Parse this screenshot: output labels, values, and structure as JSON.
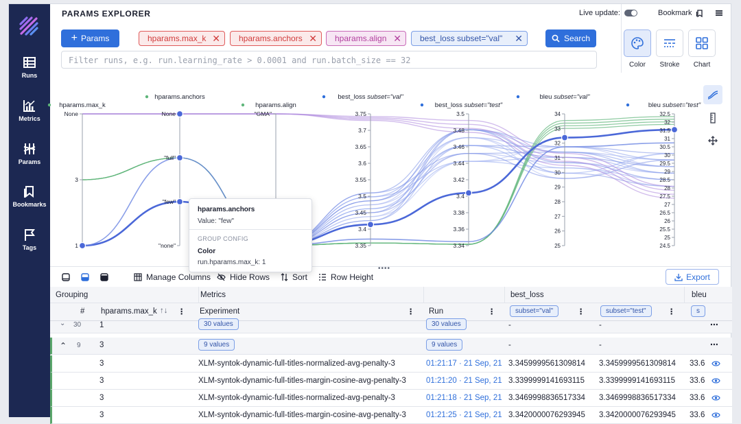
{
  "app": {
    "title": "PARAMS EXPLORER",
    "live_update_label": "Live update:",
    "bookmark_label": "Bookmark"
  },
  "sidebar": {
    "items": [
      {
        "label": "Runs",
        "icon": "runs-icon"
      },
      {
        "label": "Metrics",
        "icon": "metrics-icon"
      },
      {
        "label": "Params",
        "icon": "params-icon"
      },
      {
        "label": "Bookmarks",
        "icon": "bookmarks-icon"
      },
      {
        "label": "Tags",
        "icon": "tags-icon"
      }
    ]
  },
  "selector": {
    "params_button": "Params",
    "chips": [
      "hparams.max_k",
      "hparams.anchors",
      "hparams.align",
      "best_loss subset=\"val\""
    ],
    "search_button": "Search",
    "filter_placeholder": "Filter runs, e.g. run.learning_rate > 0.0001 and run.batch_size == 32"
  },
  "vis_controls": {
    "color": "Color",
    "stroke": "Stroke",
    "chart": "Chart"
  },
  "chart_data": {
    "type": "parallel-coordinates",
    "axes": [
      {
        "name": "hparams.max_k",
        "ticks": [
          "None",
          "3",
          "1"
        ]
      },
      {
        "name": "hparams.anchors",
        "ticks": [
          "None",
          "\"full\"",
          "\"few\"",
          "\"none\""
        ]
      },
      {
        "name": "hparams.align",
        "ticks": [
          "\"GMA\""
        ]
      },
      {
        "name": "best_loss",
        "subset": "subset=\"val\"",
        "ticks": [
          "3.75",
          "3.7",
          "3.65",
          "3.6",
          "3.55",
          "3.5",
          "3.45",
          "3.4",
          "3.35"
        ]
      },
      {
        "name": "best_loss",
        "subset": "subset=\"test\"",
        "ticks": [
          "3.5",
          "3.48",
          "3.46",
          "3.44",
          "3.42",
          "3.4",
          "3.38",
          "3.36",
          "3.34"
        ]
      },
      {
        "name": "bleu",
        "subset": "subset=\"val\"",
        "ticks": [
          "34",
          "33",
          "32",
          "31",
          "30",
          "29",
          "28",
          "27",
          "26",
          "25"
        ]
      },
      {
        "name": "bleu",
        "subset": "subset=\"test\"",
        "ticks": [
          "32.5",
          "32",
          "31.5",
          "31",
          "30.5",
          "30",
          "29.5",
          "29",
          "28.5",
          "28",
          "27.5",
          "27",
          "26.5",
          "26",
          "25.5",
          "25",
          "24.5"
        ]
      }
    ]
  },
  "tooltip": {
    "title": "hparams.anchors",
    "value": "Value: \"few\"",
    "group_header": "GROUP CONFIG",
    "color_label": "Color",
    "color_value": "run.hparams.max_k: 1"
  },
  "toolbar": {
    "manage_columns": "Manage Columns",
    "hide_rows": "Hide Rows",
    "sort": "Sort",
    "row_height": "Row Height",
    "export": "Export"
  },
  "table": {
    "group_headers": {
      "grouping": "Grouping",
      "metrics": "Metrics",
      "best_loss": "best_loss",
      "bleu": "bleu"
    },
    "columns": {
      "index": "#",
      "max_k": "hparams.max_k",
      "experiment": "Experiment",
      "run": "Run",
      "subset_val": "subset=\"val\"",
      "subset_test": "subset=\"test\"",
      "subset_short": "s"
    },
    "groups": [
      {
        "count": "30",
        "max_k": "1",
        "values_pill": "30 values",
        "run_pill": "30 values",
        "val": "-",
        "test": "-"
      },
      {
        "count": "9",
        "max_k": "3",
        "values_pill": "9 values",
        "run_pill": "9 values",
        "val": "-",
        "test": "-"
      }
    ],
    "rows": [
      {
        "max_k": "3",
        "experiment": "XLM-syntok-dynamic-full-titles-normalized-avg-penalty-3",
        "run": "01:21:17 · 21 Sep, 21",
        "val": "3.3459999561309814",
        "test": "3.3459999561309814",
        "bleu": "33.6"
      },
      {
        "max_k": "3",
        "experiment": "XLM-syntok-dynamic-full-titles-margin-cosine-avg-penalty-3",
        "run": "01:21:20 · 21 Sep, 21",
        "val": "3.3399999141693115",
        "test": "3.3399999141693115",
        "bleu": "33.6"
      },
      {
        "max_k": "3",
        "experiment": "XLM-syntok-dynamic-full-titles-normalized-avg-penalty-3",
        "run": "01:21:18 · 21 Sep, 21",
        "val": "3.3469998836517334",
        "test": "3.3469998836517334",
        "bleu": "33.6"
      },
      {
        "max_k": "3",
        "experiment": "XLM-syntok-dynamic-full-titles-margin-cosine-avg-penalty-3",
        "run": "01:21:25 · 21 Sep, 21",
        "val": "3.3420000076293945",
        "test": "3.3420000076293945",
        "bleu": "33.6"
      }
    ]
  }
}
